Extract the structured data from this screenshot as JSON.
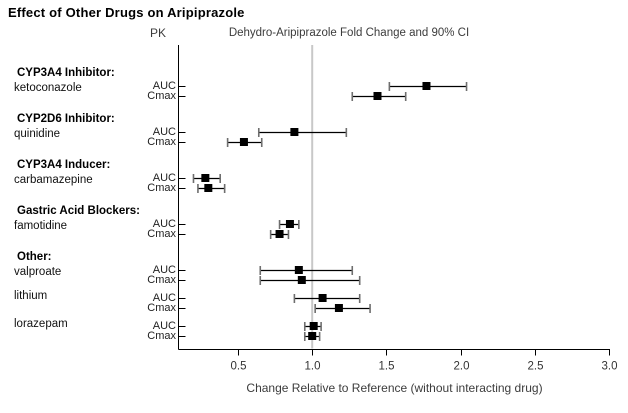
{
  "figure": {
    "title": "Effect of Other Drugs on Aripiprazole",
    "pk_header": "PK",
    "plot_header": "Dehydro-Aripiprazole Fold Change and 90% CI"
  },
  "chart_data": {
    "type": "forest",
    "title": "Effect of Other Drugs on Aripiprazole",
    "subtitle": "Dehydro-Aripiprazole Fold Change and 90% CI",
    "xlabel": "Change Relative to Reference (without interacting drug)",
    "reference_value": 1.0,
    "xlim": [
      0.1,
      3.0
    ],
    "x_ticks": [
      0.5,
      1.0,
      1.5,
      2.0,
      2.5,
      3.0
    ],
    "x_tick_labels": [
      "0.5",
      "1.0",
      "1.5",
      "2.0",
      "2.5",
      "3.0"
    ],
    "pk_metrics": [
      "AUC",
      "Cmax"
    ],
    "grid": false,
    "legend": "none",
    "style": {
      "marker_color": "#000000",
      "ci_line_color": "#000000",
      "ci_cap_color": "#6e6e6e",
      "reference_line_color": "#c8c8c8",
      "axis_color": "#000000",
      "tick_label_color": "#333333"
    },
    "groups": [
      {
        "heading": "CYP3A4 Inhibitor:",
        "drugs": [
          {
            "name": "ketoconazole",
            "rows": [
              {
                "pk": "AUC",
                "value": 1.77,
                "ci_low": 1.52,
                "ci_high": 2.04
              },
              {
                "pk": "Cmax",
                "value": 1.44,
                "ci_low": 1.27,
                "ci_high": 1.63
              }
            ]
          }
        ]
      },
      {
        "heading": "CYP2D6 Inhibitor:",
        "drugs": [
          {
            "name": "quinidine",
            "rows": [
              {
                "pk": "AUC",
                "value": 0.88,
                "ci_low": 0.64,
                "ci_high": 1.23
              },
              {
                "pk": "Cmax",
                "value": 0.54,
                "ci_low": 0.43,
                "ci_high": 0.66
              }
            ]
          }
        ]
      },
      {
        "heading": "CYP3A4 Inducer:",
        "drugs": [
          {
            "name": "carbamazepine",
            "rows": [
              {
                "pk": "AUC",
                "value": 0.28,
                "ci_low": 0.2,
                "ci_high": 0.38
              },
              {
                "pk": "Cmax",
                "value": 0.3,
                "ci_low": 0.23,
                "ci_high": 0.41
              }
            ]
          }
        ]
      },
      {
        "heading": "Gastric Acid Blockers:",
        "drugs": [
          {
            "name": "famotidine",
            "rows": [
              {
                "pk": "AUC",
                "value": 0.85,
                "ci_low": 0.78,
                "ci_high": 0.91
              },
              {
                "pk": "Cmax",
                "value": 0.78,
                "ci_low": 0.72,
                "ci_high": 0.84
              }
            ]
          }
        ]
      },
      {
        "heading": "Other:",
        "drugs": [
          {
            "name": "valproate",
            "rows": [
              {
                "pk": "AUC",
                "value": 0.91,
                "ci_low": 0.65,
                "ci_high": 1.27
              },
              {
                "pk": "Cmax",
                "value": 0.93,
                "ci_low": 0.65,
                "ci_high": 1.32
              }
            ]
          },
          {
            "name": "lithium",
            "rows": [
              {
                "pk": "AUC",
                "value": 1.07,
                "ci_low": 0.88,
                "ci_high": 1.32
              },
              {
                "pk": "Cmax",
                "value": 1.18,
                "ci_low": 1.02,
                "ci_high": 1.39
              }
            ]
          },
          {
            "name": "lorazepam",
            "rows": [
              {
                "pk": "AUC",
                "value": 1.01,
                "ci_low": 0.95,
                "ci_high": 1.06
              },
              {
                "pk": "Cmax",
                "value": 1.0,
                "ci_low": 0.95,
                "ci_high": 1.05
              }
            ]
          }
        ]
      }
    ]
  }
}
